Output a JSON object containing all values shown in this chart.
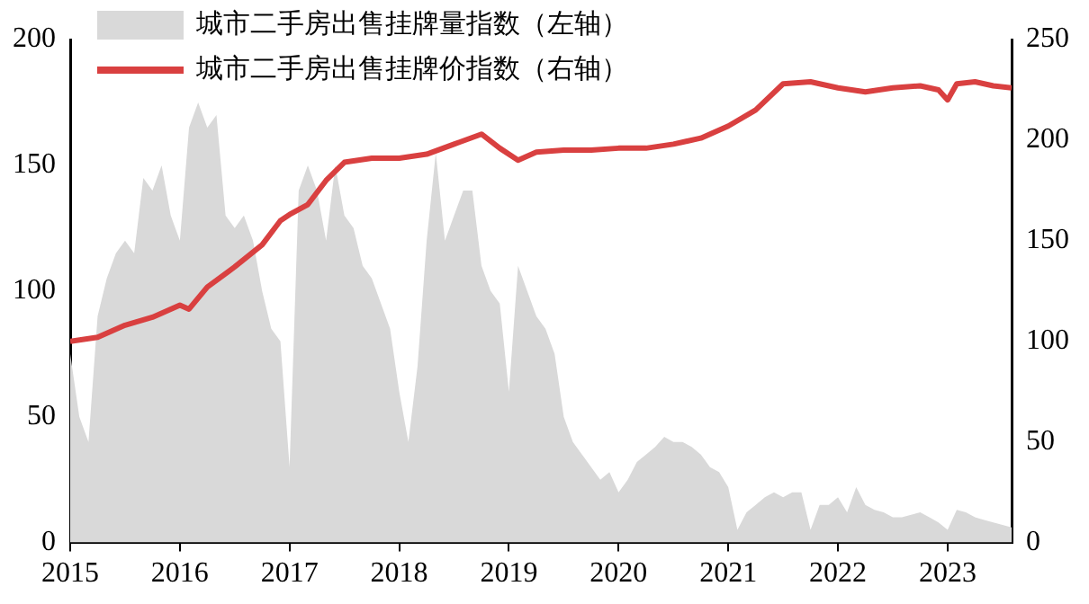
{
  "chart_data": {
    "type": "line",
    "x": [
      "2015-01",
      "2015-02",
      "2015-03",
      "2015-04",
      "2015-05",
      "2015-06",
      "2015-07",
      "2015-08",
      "2015-09",
      "2015-10",
      "2015-11",
      "2015-12",
      "2016-01",
      "2016-02",
      "2016-03",
      "2016-04",
      "2016-05",
      "2016-06",
      "2016-07",
      "2016-08",
      "2016-09",
      "2016-10",
      "2016-11",
      "2016-12",
      "2017-01",
      "2017-02",
      "2017-03",
      "2017-04",
      "2017-05",
      "2017-06",
      "2017-07",
      "2017-08",
      "2017-09",
      "2017-10",
      "2017-11",
      "2017-12",
      "2018-01",
      "2018-02",
      "2018-03",
      "2018-04",
      "2018-05",
      "2018-06",
      "2018-07",
      "2018-08",
      "2018-09",
      "2018-10",
      "2018-11",
      "2018-12",
      "2019-01",
      "2019-02",
      "2019-03",
      "2019-04",
      "2019-05",
      "2019-06",
      "2019-07",
      "2019-08",
      "2019-09",
      "2019-10",
      "2019-11",
      "2019-12",
      "2020-01",
      "2020-02",
      "2020-03",
      "2020-04",
      "2020-05",
      "2020-06",
      "2020-07",
      "2020-08",
      "2020-09",
      "2020-10",
      "2020-11",
      "2020-12",
      "2021-01",
      "2021-02",
      "2021-03",
      "2021-04",
      "2021-05",
      "2021-06",
      "2021-07",
      "2021-08",
      "2021-09",
      "2021-10",
      "2021-11",
      "2021-12",
      "2022-01",
      "2022-02",
      "2022-03",
      "2022-04",
      "2022-05",
      "2022-06",
      "2022-07",
      "2022-08",
      "2022-09",
      "2022-10",
      "2022-11",
      "2022-12",
      "2023-01",
      "2023-02",
      "2023-03",
      "2023-04",
      "2023-05",
      "2023-06",
      "2023-07",
      "2023-08"
    ],
    "series": [
      {
        "name": "城市二手房出售挂牌量指数（左轴）",
        "type": "area",
        "color": "#d9d9d9",
        "values": [
          75,
          50,
          40,
          90,
          105,
          115,
          120,
          115,
          145,
          140,
          150,
          130,
          120,
          165,
          175,
          165,
          170,
          130,
          125,
          130,
          120,
          100,
          85,
          80,
          30,
          140,
          150,
          140,
          120,
          150,
          130,
          125,
          110,
          105,
          95,
          85,
          60,
          40,
          70,
          120,
          155,
          120,
          130,
          140,
          140,
          110,
          100,
          95,
          60,
          110,
          100,
          90,
          85,
          75,
          50,
          40,
          35,
          30,
          25,
          28,
          20,
          25,
          32,
          35,
          38,
          42,
          40,
          40,
          38,
          35,
          30,
          28,
          22,
          5,
          12,
          15,
          18,
          20,
          18,
          20,
          20,
          5,
          15,
          15,
          18,
          12,
          22,
          15,
          13,
          12,
          10,
          10,
          11,
          12,
          10,
          8,
          5,
          13,
          12,
          10,
          9,
          8,
          7,
          6
        ]
      },
      {
        "name": "城市二手房出售挂牌价指数（右轴）",
        "type": "line",
        "axis": "y2",
        "color": "#d94040",
        "x": [
          "2015-01",
          "2015-04",
          "2015-07",
          "2015-10",
          "2016-01",
          "2016-02",
          "2016-04",
          "2016-07",
          "2016-10",
          "2016-12",
          "2017-01",
          "2017-03",
          "2017-05",
          "2017-07",
          "2017-10",
          "2018-01",
          "2018-04",
          "2018-07",
          "2018-10",
          "2018-12",
          "2019-02",
          "2019-04",
          "2019-07",
          "2019-10",
          "2020-01",
          "2020-04",
          "2020-07",
          "2020-10",
          "2021-01",
          "2021-04",
          "2021-07",
          "2021-10",
          "2022-01",
          "2022-04",
          "2022-07",
          "2022-10",
          "2022-12",
          "2023-01",
          "2023-02",
          "2023-04",
          "2023-06",
          "2023-08"
        ],
        "values": [
          100,
          102,
          108,
          112,
          118,
          116,
          127,
          137,
          148,
          160,
          163,
          168,
          180,
          189,
          191,
          191,
          193,
          198,
          203,
          196,
          190,
          194,
          195,
          195,
          196,
          196,
          198,
          201,
          207,
          215,
          228,
          229,
          226,
          224,
          226,
          227,
          225,
          220,
          228,
          229,
          227,
          226
        ]
      }
    ],
    "xlim": [
      "2015-01",
      "2023-08"
    ],
    "xticks": [
      {
        "value": "2015-01",
        "label": "2015"
      },
      {
        "value": "2016-01",
        "label": "2016"
      },
      {
        "value": "2017-01",
        "label": "2017"
      },
      {
        "value": "2018-01",
        "label": "2018"
      },
      {
        "value": "2019-01",
        "label": "2019"
      },
      {
        "value": "2020-01",
        "label": "2020"
      },
      {
        "value": "2021-01",
        "label": "2021"
      },
      {
        "value": "2022-01",
        "label": "2022"
      },
      {
        "value": "2023-01",
        "label": "2023"
      }
    ],
    "ylim": [
      0,
      200
    ],
    "yticks": [
      0,
      50,
      100,
      150,
      200
    ],
    "y2lim": [
      0,
      250
    ],
    "y2ticks": [
      0,
      50,
      100,
      150,
      200,
      250
    ],
    "grid": false,
    "legend": "top"
  }
}
